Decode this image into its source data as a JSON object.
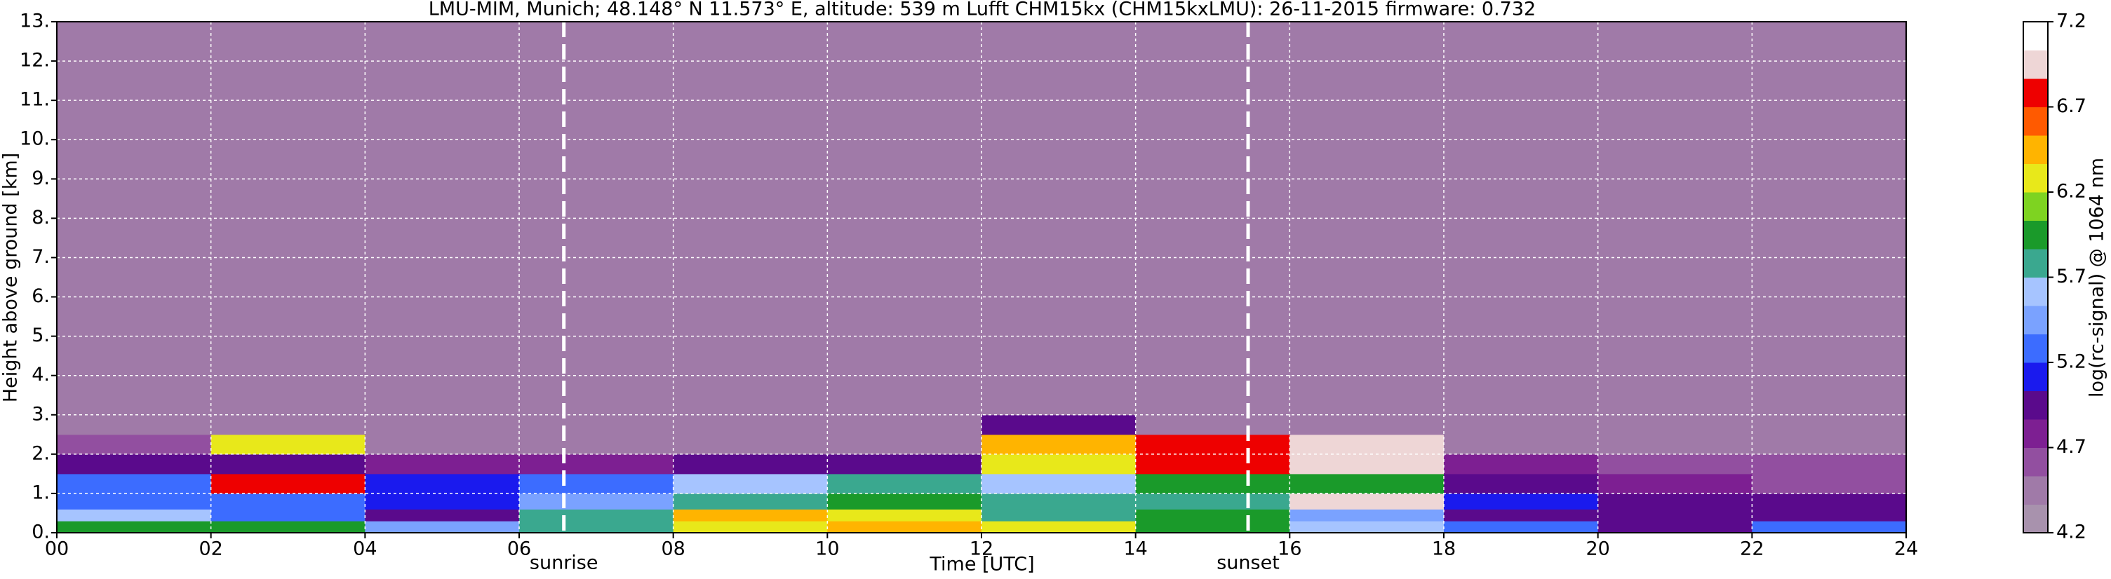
{
  "chart_data": {
    "type": "heatmap",
    "title": "LMU-MIM, Munich; 48.148° N 11.573° E, altitude: 539 m    Lufft CHM15kx (CHM15kxLMU): 26-11-2015    firmware: 0.732",
    "x_label": "Time [UTC]",
    "y_label": "Height above ground [km]",
    "colorbar_label": "log(rc-signal) @ 1064 nm",
    "x_edges": [
      0,
      2,
      4,
      6,
      8,
      10,
      12,
      14,
      16,
      18,
      20,
      22,
      24
    ],
    "y_edges": [
      0,
      0.3,
      0.6,
      1.0,
      1.5,
      2.0,
      2.5,
      3.0,
      13
    ],
    "z": [
      [
        6.0,
        6.0,
        5.4,
        5.8,
        6.3,
        6.5,
        6.3,
        6.0,
        5.6,
        5.2,
        5.0,
        5.2
      ],
      [
        5.6,
        5.3,
        5.0,
        5.8,
        6.4,
        6.2,
        5.8,
        5.9,
        5.5,
        5.0,
        4.9,
        5.0
      ],
      [
        5.3,
        5.3,
        5.1,
        5.4,
        5.8,
        5.9,
        5.7,
        5.8,
        6.9,
        5.1,
        4.9,
        4.9
      ],
      [
        5.2,
        6.8,
        5.1,
        5.2,
        5.6,
        5.8,
        5.6,
        6.0,
        6.0,
        5.0,
        4.7,
        4.6
      ],
      [
        4.9,
        5.0,
        4.7,
        4.8,
        5.0,
        5.0,
        6.3,
        6.7,
        6.9,
        4.7,
        4.6,
        4.6
      ],
      [
        4.6,
        6.2,
        4.5,
        4.5,
        4.5,
        4.5,
        6.5,
        6.7,
        7.0,
        4.5,
        4.5,
        4.5
      ],
      [
        4.5,
        4.5,
        4.5,
        4.5,
        4.5,
        4.5,
        5.0,
        4.5,
        4.5,
        4.5,
        4.5,
        4.5
      ],
      [
        4.5,
        4.5,
        4.5,
        4.5,
        4.5,
        4.5,
        4.5,
        4.5,
        4.5,
        4.5,
        4.5,
        4.5
      ]
    ],
    "clim": [
      4.2,
      7.2
    ],
    "colormap": [
      "#a892ad",
      "#a07aa8",
      "#924fa0",
      "#7d1f92",
      "#5a0a8c",
      "#1a1aee",
      "#3c6cff",
      "#7aa2ff",
      "#a6c4ff",
      "#3aa88f",
      "#1a9a2a",
      "#7ed321",
      "#e8e81a",
      "#ffb400",
      "#ff5a00",
      "#ee0000",
      "#eed6d6",
      "#ffffff"
    ],
    "xlim": [
      0,
      24
    ],
    "ylim": [
      0,
      13
    ],
    "xticks": [
      {
        "value": 0,
        "label": "00"
      },
      {
        "value": 2,
        "label": "02"
      },
      {
        "value": 4,
        "label": "04"
      },
      {
        "value": 6,
        "label": "06"
      },
      {
        "value": 8,
        "label": "08"
      },
      {
        "value": 10,
        "label": "10"
      },
      {
        "value": 12,
        "label": "12"
      },
      {
        "value": 14,
        "label": "14"
      },
      {
        "value": 16,
        "label": "16"
      },
      {
        "value": 18,
        "label": "18"
      },
      {
        "value": 20,
        "label": "20"
      },
      {
        "value": 22,
        "label": "22"
      },
      {
        "value": 24,
        "label": "24"
      }
    ],
    "yticks": [
      {
        "value": 0,
        "label": "0."
      },
      {
        "value": 1,
        "label": "1."
      },
      {
        "value": 2,
        "label": "2."
      },
      {
        "value": 3,
        "label": "3."
      },
      {
        "value": 4,
        "label": "4."
      },
      {
        "value": 5,
        "label": "5."
      },
      {
        "value": 6,
        "label": "6."
      },
      {
        "value": 7,
        "label": "7."
      },
      {
        "value": 8,
        "label": "8."
      },
      {
        "value": 9,
        "label": "9."
      },
      {
        "value": 10,
        "label": "10."
      },
      {
        "value": 11,
        "label": "11."
      },
      {
        "value": 12,
        "label": "12."
      },
      {
        "value": 13,
        "label": "13."
      }
    ],
    "colorbar_ticks": [
      4.2,
      4.7,
      5.2,
      5.7,
      6.2,
      6.7,
      7.2
    ],
    "grid": true,
    "events": [
      {
        "x": 6.58,
        "label": "sunrise"
      },
      {
        "x": 15.46,
        "label": "sunset"
      }
    ]
  }
}
